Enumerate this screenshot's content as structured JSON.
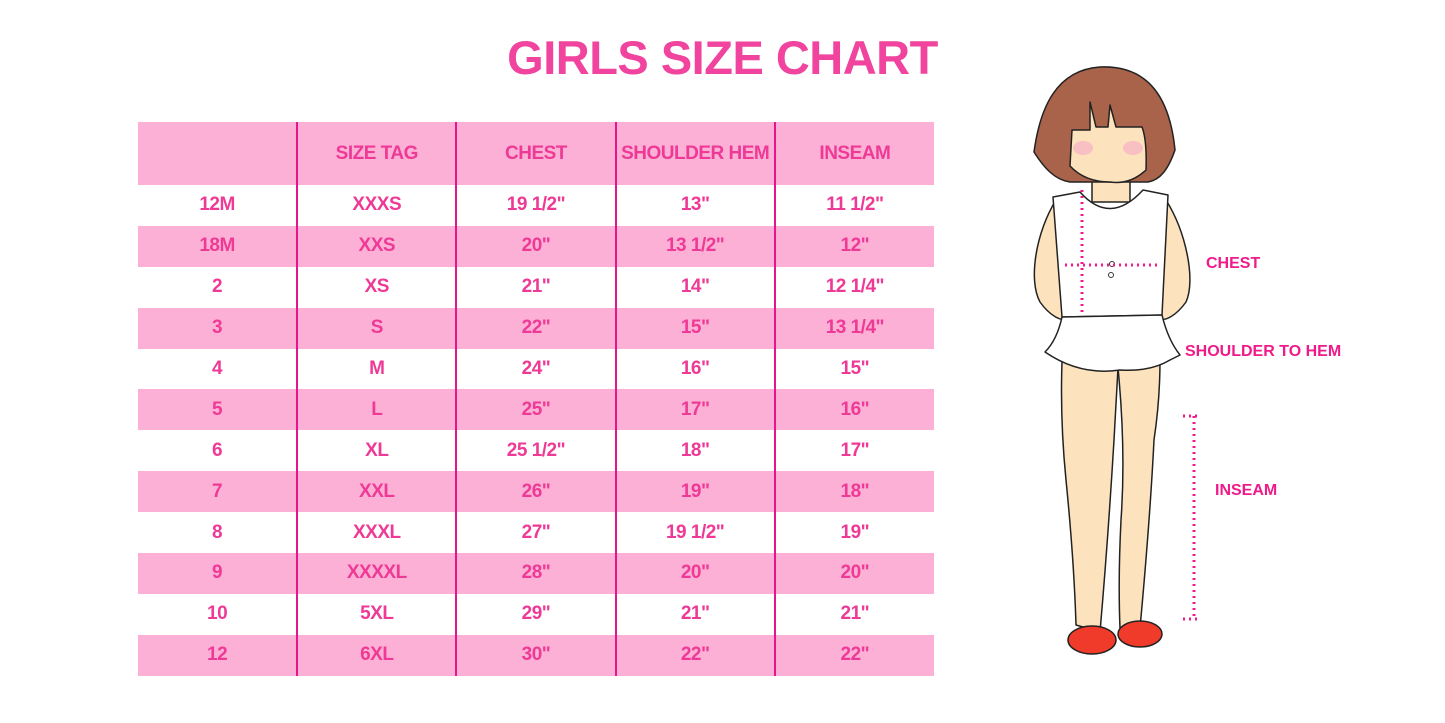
{
  "title": "GIRLS SIZE CHART",
  "table": {
    "headers": [
      "",
      "SIZE TAG",
      "CHEST",
      "SHOULDER HEM",
      "INSEAM"
    ],
    "rows": [
      [
        "12M",
        "XXXS",
        "19 1/2\"",
        "13\"",
        "11 1/2\""
      ],
      [
        "18M",
        "XXS",
        "20\"",
        "13 1/2\"",
        "12\""
      ],
      [
        "2",
        "XS",
        "21\"",
        "14\"",
        "12 1/4\""
      ],
      [
        "3",
        "S",
        "22\"",
        "15\"",
        "13 1/4\""
      ],
      [
        "4",
        "M",
        "24\"",
        "16\"",
        "15\""
      ],
      [
        "5",
        "L",
        "25\"",
        "17\"",
        "16\""
      ],
      [
        "6",
        "XL",
        "25 1/2\"",
        "18\"",
        "17\""
      ],
      [
        "7",
        "XXL",
        "26\"",
        "19\"",
        "18\""
      ],
      [
        "8",
        "XXXL",
        "27\"",
        "19 1/2\"",
        "19\""
      ],
      [
        "9",
        "XXXXL",
        "28\"",
        "20\"",
        "20\""
      ],
      [
        "10",
        "5XL",
        "29\"",
        "21\"",
        "21\""
      ],
      [
        "12",
        "6XL",
        "30\"",
        "22\"",
        "22\""
      ]
    ]
  },
  "figure": {
    "labels": {
      "chest": "CHEST",
      "shoulder_to_hem": "SHOULDER TO HEM",
      "inseam": "INSEAM"
    }
  },
  "colors": {
    "title": "#f0449e",
    "text": "#ee3a96",
    "row_pink": "#fdb0d5",
    "divider": "#e6168a",
    "measure": "#f01a8a"
  }
}
